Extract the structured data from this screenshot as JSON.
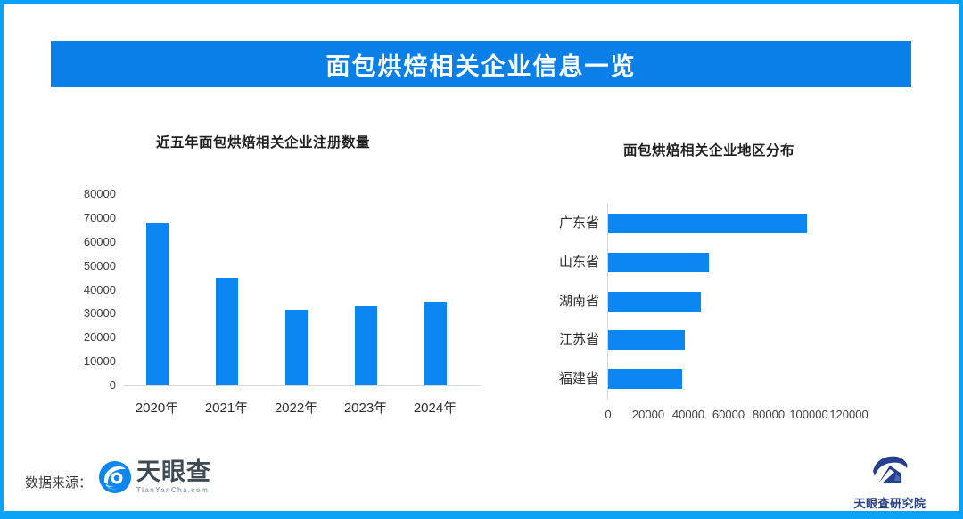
{
  "frame": {
    "border_color": "#0aa2f8",
    "background": "#ffffff"
  },
  "header": {
    "title": "面包烘焙相关企业信息一览",
    "bg_color": "#0880e8",
    "text_color": "#ffffff"
  },
  "chart_data": [
    {
      "type": "bar",
      "title": "近五年面包烘焙相关企业注册数量",
      "categories": [
        "2020年",
        "2021年",
        "2022年",
        "2023年",
        "2024年"
      ],
      "values": [
        68000,
        45000,
        31500,
        33000,
        35000
      ],
      "ylim": [
        0,
        80000
      ],
      "y_ticks": [
        0,
        10000,
        20000,
        30000,
        40000,
        50000,
        60000,
        70000,
        80000
      ],
      "bar_color": "#0c86f0",
      "grid": false,
      "legend": "none"
    },
    {
      "type": "bar-horizontal",
      "title": "面包烘焙相关企业地区分布",
      "categories": [
        "广东省",
        "山东省",
        "湖南省",
        "江苏省",
        "福建省"
      ],
      "values": [
        99000,
        50000,
        46000,
        38000,
        37000
      ],
      "xlim": [
        0,
        120000
      ],
      "x_ticks": [
        0,
        20000,
        40000,
        60000,
        80000,
        100000,
        120000
      ],
      "bar_color": "#0c86f0",
      "grid": false,
      "legend": "none"
    }
  ],
  "footer": {
    "source_label": "数据来源：",
    "tianyancha_logo": {
      "name": "天眼查",
      "subtext": "TianYanCha.com"
    },
    "research_logo": {
      "name": "天眼查研究院"
    }
  }
}
